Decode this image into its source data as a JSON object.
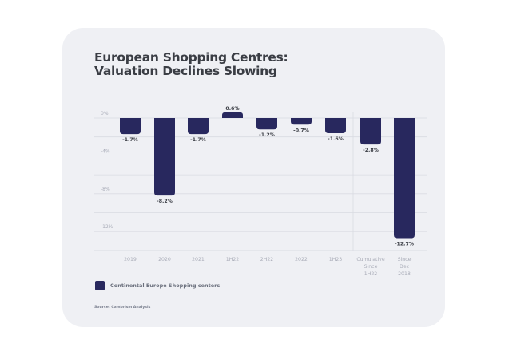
{
  "title_line1": "European Shopping Centres:",
  "title_line2": "Valuation Declines Slowing",
  "legend_label": "Continental Europe Shopping centers",
  "source": "Source: Cambrism Analysis",
  "colors": {
    "bar": "#28285e",
    "card": "#eff0f4",
    "grid": "#d9dbe2",
    "tick": "#a9acb8",
    "label": "#3a3d44"
  },
  "chart_data": {
    "type": "bar",
    "title": "European Shopping Centres: Valuation Declines Slowing",
    "xlabel": "",
    "ylabel": "",
    "categories": [
      "2019",
      "2020",
      "2021",
      "1H22",
      "2H22",
      "2022",
      "1H23",
      "Cumulative Since 1H22",
      "Since Dec 2018"
    ],
    "category_lines": [
      [
        "2019"
      ],
      [
        "2020"
      ],
      [
        "2021"
      ],
      [
        "1H22"
      ],
      [
        "2H22"
      ],
      [
        "2022"
      ],
      [
        "1H23"
      ],
      [
        "Cumulative",
        "Since",
        "1H22"
      ],
      [
        "Since",
        "Dec",
        "2018"
      ]
    ],
    "series": [
      {
        "name": "Continental Europe Shopping centers",
        "values": [
          -1.7,
          -8.2,
          -1.7,
          0.6,
          -1.2,
          -0.7,
          -1.6,
          -2.8,
          -12.7
        ],
        "labels": [
          "-1.7%",
          "-8.2%",
          "-1.7%",
          "0.6%",
          "-1.2%",
          "-0.7%",
          "-1.6%",
          "-2.8%",
          "-12.7%"
        ]
      }
    ],
    "ylim": [
      -14,
      0.8
    ],
    "yticks": [
      0,
      -4,
      -8,
      -12
    ],
    "ytick_labels": [
      "0%",
      "-4%",
      "-8%",
      "-12%"
    ],
    "gridlines_every": 2,
    "grid": true,
    "divider_before_category": "Cumulative Since 1H22",
    "legend_position": "bottom-left"
  }
}
